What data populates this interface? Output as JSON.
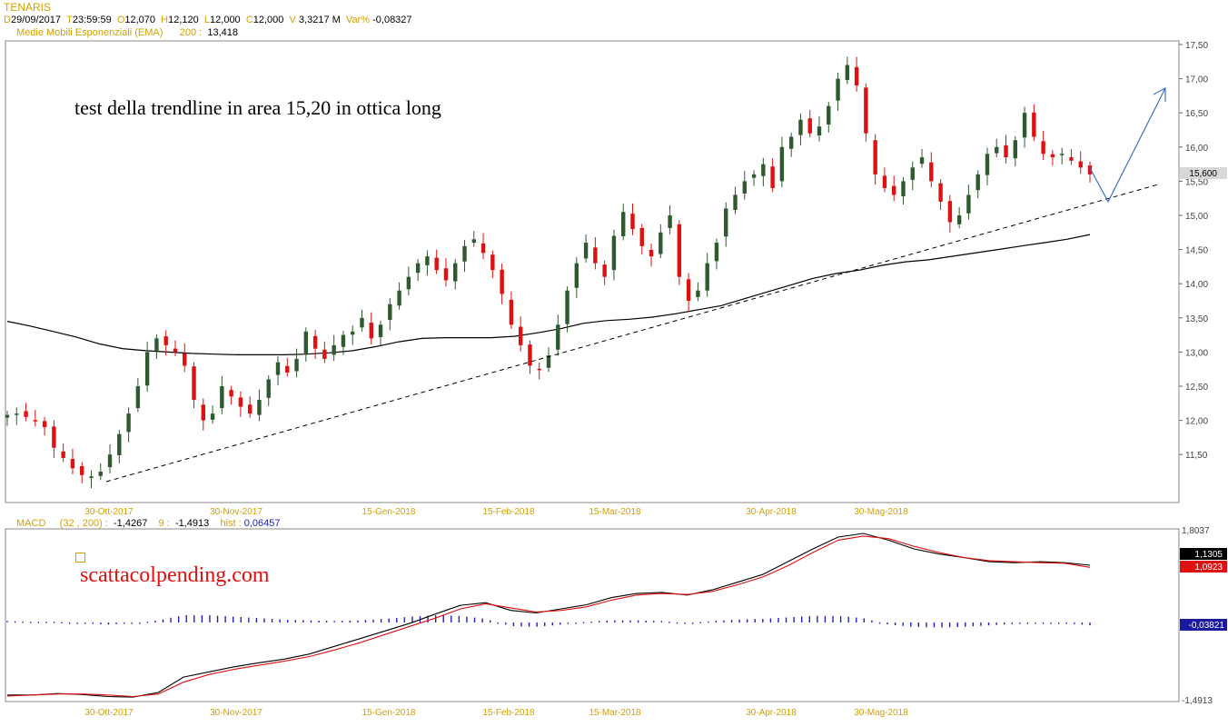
{
  "header": {
    "symbol": "TENARIS",
    "fields": [
      {
        "key": "D",
        "value": "29/09/2017"
      },
      {
        "key": "T",
        "value": "23:59:59"
      },
      {
        "key": "O",
        "value": "12,070"
      },
      {
        "key": "H",
        "value": "12,120"
      },
      {
        "key": "L",
        "value": "12,000"
      },
      {
        "key": "C",
        "value": "12,000"
      },
      {
        "key": "V",
        "value": "3,3217 M"
      },
      {
        "key": "Var%",
        "value": "-0,08327"
      }
    ],
    "ema_label": "Medie Mobili Esponenziali (EMA)",
    "ema_period": "200 :",
    "ema_value": "13,418"
  },
  "price_panel": {
    "annotation": "test della trendline in area 15,20 in ottica long",
    "last_price_label": "15,600",
    "y_ticks": [
      "11,50",
      "12,00",
      "12,50",
      "13,00",
      "13,50",
      "14,00",
      "14,50",
      "15,00",
      "15,50",
      "16,00",
      "16,50",
      "17,00",
      "17,50"
    ],
    "x_dates": [
      "30-Ott-2017",
      "30-Nov-2017",
      "15-Gen-2018",
      "15-Feb-2018",
      "15-Mar-2018",
      "30-Apr-2018",
      "30-Mag-2018"
    ]
  },
  "macd_panel": {
    "label": "MACD",
    "params": "(32 , 200) :",
    "macd_value": "-1,4267",
    "signal_period": "9 :",
    "signal_value": "-1,4913",
    "hist_label": "hist :",
    "hist_value": "0,06457",
    "axis_top": "1,8037",
    "axis_bottom": "-1,4913",
    "tag_macd": "1,1305",
    "tag_signal": "1,0923",
    "tag_hist": "-0,03821",
    "watermark": "scattacolpending.com"
  },
  "colors": {
    "up_candle": "#2f5a2f",
    "down_candle": "#e01010",
    "ema_line": "#000000",
    "trendline": "#000000",
    "arrow": "#3a6fc8",
    "macd_line": "#000000",
    "signal_line": "#e01010",
    "hist_bars": "#2020c0",
    "label_gold": "#d4a000"
  },
  "chart_data": [
    {
      "type": "candlestick",
      "title": "TENARIS",
      "ylim": [
        11.0,
        17.6
      ],
      "x_dates": [
        "30-Ott-2017",
        "30-Nov-2017",
        "15-Gen-2018",
        "15-Feb-2018",
        "15-Mar-2018",
        "30-Apr-2018",
        "30-Mag-2018"
      ],
      "close_path": [
        12.08,
        12.1,
        12.05,
        12.0,
        11.9,
        11.6,
        11.45,
        11.3,
        11.2,
        11.18,
        11.25,
        11.5,
        11.8,
        12.1,
        12.5,
        13.0,
        13.2,
        13.1,
        13.0,
        12.8,
        12.3,
        12.0,
        12.1,
        12.5,
        12.35,
        12.2,
        12.1,
        12.3,
        12.6,
        12.85,
        12.7,
        12.9,
        13.3,
        13.05,
        12.9,
        13.1,
        13.25,
        13.3,
        13.5,
        13.2,
        13.4,
        13.7,
        13.9,
        14.1,
        14.3,
        14.4,
        14.2,
        14.05,
        14.3,
        14.55,
        14.65,
        14.45,
        14.2,
        13.85,
        13.4,
        13.1,
        12.8,
        12.75,
        12.95,
        13.4,
        13.9,
        14.3,
        14.6,
        14.3,
        14.1,
        14.7,
        15.05,
        14.8,
        14.55,
        14.4,
        14.75,
        15.0,
        14.1,
        13.75,
        13.9,
        14.3,
        14.6,
        15.1,
        15.3,
        15.5,
        15.6,
        15.75,
        15.4,
        16.0,
        16.15,
        16.4,
        16.2,
        16.3,
        16.6,
        17.0,
        17.2,
        16.9,
        16.2,
        15.6,
        15.4,
        15.3,
        15.5,
        15.7,
        15.85,
        15.5,
        15.2,
        14.9,
        15.0,
        15.3,
        15.6,
        15.9,
        16.0,
        15.85,
        16.1,
        16.5,
        16.15,
        15.9,
        15.85,
        15.9,
        15.8,
        15.7,
        15.6
      ],
      "ema200_path": [
        13.45,
        13.38,
        13.3,
        13.22,
        13.12,
        13.05,
        13.02,
        13.0,
        12.98,
        12.97,
        12.96,
        12.96,
        12.96,
        12.97,
        12.99,
        13.02,
        13.08,
        13.15,
        13.2,
        13.21,
        13.21,
        13.21,
        13.23,
        13.28,
        13.34,
        13.42,
        13.46,
        13.48,
        13.51,
        13.56,
        13.62,
        13.68,
        13.78,
        13.88,
        13.98,
        14.08,
        14.15,
        14.2,
        14.27,
        14.32,
        14.35,
        14.4,
        14.45,
        14.5,
        14.55,
        14.6,
        14.65,
        14.72
      ],
      "trendline": {
        "from": [
          "30-Ott-2017",
          11.1
        ],
        "to": [
          "2018-06",
          15.45
        ]
      },
      "projection_arrow": {
        "from": 15.6,
        "via": 15.2,
        "to": 16.9
      }
    },
    {
      "type": "line",
      "title": "MACD",
      "series": [
        {
          "name": "MACD",
          "values": [
            -1.4,
            -1.4,
            -1.37,
            -1.39,
            -1.43,
            -1.44,
            -1.35,
            -1.05,
            -0.95,
            -0.85,
            -0.77,
            -0.7,
            -0.6,
            -0.45,
            -0.3,
            -0.15,
            0.0,
            0.18,
            0.35,
            0.4,
            0.25,
            0.2,
            0.28,
            0.36,
            0.5,
            0.58,
            0.6,
            0.55,
            0.65,
            0.8,
            0.95,
            1.2,
            1.45,
            1.68,
            1.75,
            1.62,
            1.45,
            1.35,
            1.28,
            1.2,
            1.18,
            1.2,
            1.18,
            1.13
          ]
        },
        {
          "name": "Signal",
          "values": [
            -1.42,
            -1.4,
            -1.38,
            -1.38,
            -1.4,
            -1.43,
            -1.38,
            -1.15,
            -1.0,
            -0.9,
            -0.82,
            -0.74,
            -0.65,
            -0.52,
            -0.38,
            -0.22,
            -0.06,
            0.1,
            0.28,
            0.38,
            0.3,
            0.22,
            0.25,
            0.32,
            0.45,
            0.55,
            0.58,
            0.56,
            0.62,
            0.75,
            0.9,
            1.12,
            1.38,
            1.62,
            1.7,
            1.65,
            1.5,
            1.38,
            1.28,
            1.22,
            1.2,
            1.18,
            1.17,
            1.09
          ]
        }
      ],
      "histogram": [
        0.02,
        0.01,
        0.01,
        -0.01,
        -0.03,
        -0.01,
        0.03,
        0.1,
        0.1,
        0.08,
        0.06,
        0.04,
        0.03,
        0.02,
        0.03,
        0.05,
        0.08,
        0.1,
        0.09,
        0.05,
        -0.05,
        -0.06,
        -0.03,
        0.01,
        0.03,
        0.03,
        0.02,
        -0.01,
        0.02,
        0.04,
        0.05,
        0.07,
        0.09,
        0.09,
        0.06,
        -0.03,
        -0.06,
        -0.07,
        -0.06,
        -0.04,
        -0.02,
        0.0,
        -0.01,
        -0.04
      ],
      "ylim": [
        -1.4913,
        1.8037
      ]
    }
  ]
}
